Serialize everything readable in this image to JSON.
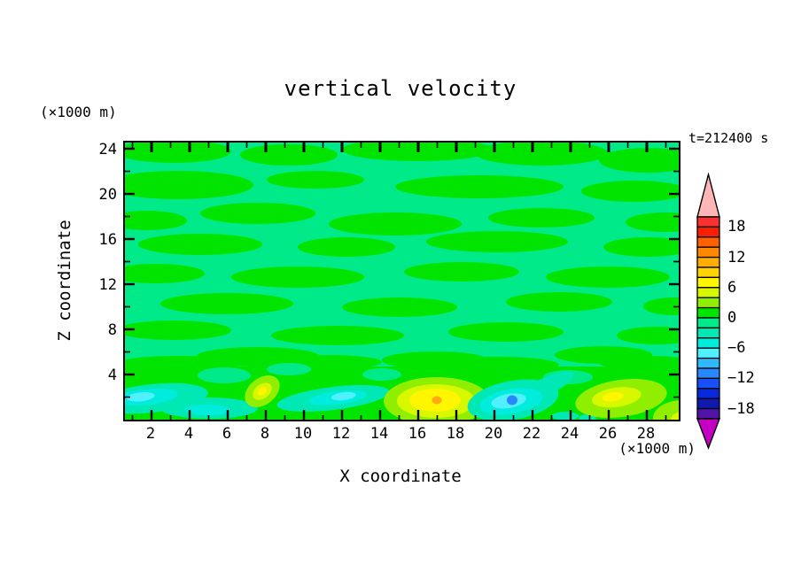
{
  "title": "vertical velocity",
  "time_label": "t=212400 s",
  "y_axis": {
    "unit": "(×1000 m)",
    "label": "Z coordinate",
    "ticks": [
      "24",
      "20",
      "16",
      "12",
      "8",
      "4"
    ]
  },
  "x_axis": {
    "unit": "(×1000 m)",
    "label": "X coordinate",
    "ticks": [
      "2",
      "4",
      "6",
      "8",
      "10",
      "12",
      "14",
      "16",
      "18",
      "20",
      "22",
      "24",
      "26",
      "28"
    ]
  },
  "colorbar": {
    "labels": [
      "18",
      "12",
      "6",
      "0",
      "−6",
      "−12",
      "−18"
    ],
    "top_tip": "#ffb6b6",
    "bottom_tip": "#c400c4",
    "segments": [
      "#f83232",
      "#fc1e00",
      "#ff6000",
      "#ff8800",
      "#ffae00",
      "#ffd200",
      "#fff600",
      "#d8f800",
      "#90ee00",
      "#00e400",
      "#00ea8a",
      "#00e8b4",
      "#00ecdc",
      "#50f0ff",
      "#30b8ff",
      "#2888ff",
      "#1850f8",
      "#0828dc",
      "#1018b0",
      "#5014a8"
    ]
  },
  "palette": {
    "gpos": "#00e400",
    "gneg": "#00ea8a",
    "aqua": "#00e8b4",
    "turq": "#00ecdc",
    "cyan": "#50f0ff",
    "chart": "#90ee00",
    "ygreen": "#d8f800",
    "yellow": "#fff600",
    "orange": "#ffaa14",
    "bluedot": "#2888ff"
  },
  "chart_data": {
    "type": "heatmap",
    "subtype": "filled-contour",
    "title": "vertical velocity",
    "xlabel": "X coordinate",
    "ylabel": "Z coordinate",
    "x_unit": "(×1000 m)",
    "y_unit": "(×1000 m)",
    "time_annotation": "t=212400 s",
    "x_range": [
      0.5,
      29.7
    ],
    "z_range": [
      0,
      24.7
    ],
    "x_tick_values": [
      2,
      4,
      6,
      8,
      10,
      12,
      14,
      16,
      18,
      20,
      22,
      24,
      26,
      28
    ],
    "z_tick_values": [
      4,
      8,
      12,
      16,
      20,
      24
    ],
    "contour_interval": 2,
    "colorbar_min": -20,
    "colorbar_max": 20,
    "colorbar_label_values": [
      18,
      12,
      6,
      0,
      -6,
      -12,
      -18
    ],
    "background_field": "near-zero values alternating between the -2..0 and 0..+2 contour bands (two greens) over most of the domain",
    "features": [
      {
        "x": 2.0,
        "z": 2.0,
        "peak": -7,
        "desc": "elongated downdraft streak near surface, left edge"
      },
      {
        "x": 7.8,
        "z": 2.5,
        "peak": 9,
        "desc": "small tilted updraft blob"
      },
      {
        "x": 11.7,
        "z": 2.0,
        "peak": -7,
        "desc": "elongated downdraft streak"
      },
      {
        "x": 17.0,
        "z": 1.8,
        "peak": 13,
        "desc": "strongest updraft cell (yellow with orange core)"
      },
      {
        "x": 21.0,
        "z": 1.8,
        "peak": -11,
        "desc": "strongest downdraft cell (cyan with blue core)"
      },
      {
        "x": 26.3,
        "z": 2.0,
        "peak": 9,
        "desc": "updraft cell"
      },
      {
        "x": 29.5,
        "z": 1.0,
        "peak": 7,
        "desc": "updraft patch at bottom-right corner"
      }
    ]
  }
}
